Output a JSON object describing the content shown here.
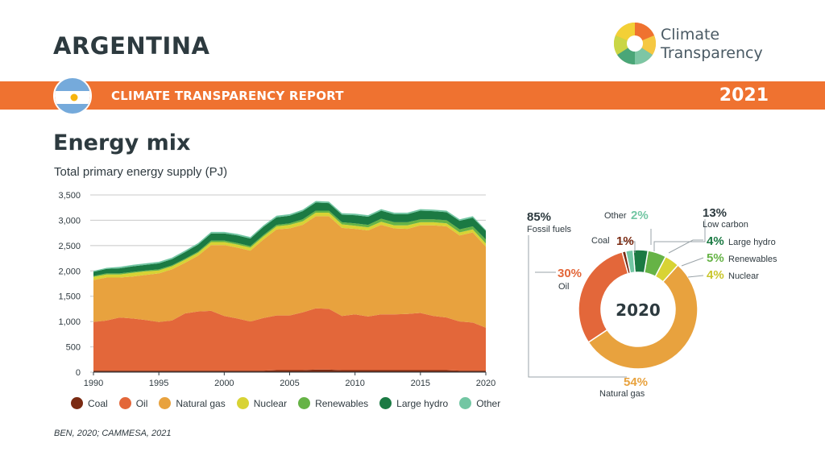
{
  "header": {
    "country": "ARGENTINA",
    "report": "CLIMATE TRANSPARENCY REPORT",
    "year": "2021",
    "logo_line1": "Climate",
    "logo_line2": "Transparency"
  },
  "section": {
    "title": "Energy mix",
    "subtitle": "Total primary energy supply (PJ)"
  },
  "source": "BEN, 2020; CAMMESA, 2021",
  "colors": {
    "Coal": "#7a2a12",
    "Oil": "#e3673a",
    "Natural gas": "#e8a23e",
    "Nuclear": "#d8d334",
    "Renewables": "#66b346",
    "Large hydro": "#1b7a43",
    "Other": "#72c6a3"
  },
  "chart_data": [
    {
      "type": "area",
      "stacked": true,
      "x": [
        1990,
        1991,
        1992,
        1993,
        1994,
        1995,
        1996,
        1997,
        1998,
        1999,
        2000,
        2001,
        2002,
        2003,
        2004,
        2005,
        2006,
        2007,
        2008,
        2009,
        2010,
        2011,
        2012,
        2013,
        2014,
        2015,
        2016,
        2017,
        2018,
        2019,
        2020
      ],
      "xticks": [
        1990,
        1995,
        2000,
        2005,
        2010,
        2015,
        2020
      ],
      "yticks": [
        0,
        500,
        1000,
        1500,
        2000,
        2500,
        3000,
        3500
      ],
      "yticklabels": [
        "0",
        "500",
        "1,000",
        "1,500",
        "2,000",
        "2,500",
        "3,000",
        "3,500"
      ],
      "ylim": [
        0,
        3500
      ],
      "grid": true,
      "legend": "bottom",
      "series": [
        {
          "name": "Coal",
          "values": [
            30,
            30,
            30,
            30,
            30,
            30,
            30,
            30,
            30,
            30,
            30,
            30,
            30,
            30,
            40,
            40,
            40,
            50,
            50,
            40,
            40,
            40,
            40,
            40,
            40,
            40,
            40,
            40,
            30,
            30,
            30
          ]
        },
        {
          "name": "Oil",
          "values": [
            960,
            990,
            1050,
            1030,
            1000,
            960,
            990,
            1130,
            1170,
            1180,
            1080,
            1030,
            970,
            1040,
            1080,
            1080,
            1140,
            1210,
            1200,
            1070,
            1100,
            1060,
            1100,
            1100,
            1110,
            1130,
            1070,
            1040,
            970,
            950,
            850
          ]
        },
        {
          "name": "Natural gas",
          "values": [
            830,
            850,
            790,
            830,
            890,
            960,
            1010,
            1000,
            1100,
            1300,
            1400,
            1400,
            1400,
            1550,
            1700,
            1720,
            1730,
            1820,
            1830,
            1740,
            1690,
            1700,
            1770,
            1700,
            1680,
            1730,
            1790,
            1800,
            1700,
            1780,
            1600
          ]
        },
        {
          "name": "Nuclear",
          "values": [
            60,
            60,
            60,
            70,
            70,
            60,
            60,
            60,
            60,
            60,
            60,
            60,
            60,
            60,
            60,
            70,
            70,
            70,
            70,
            70,
            60,
            60,
            60,
            60,
            70,
            60,
            60,
            60,
            60,
            60,
            60
          ]
        },
        {
          "name": "Renewables",
          "values": [
            20,
            20,
            20,
            20,
            20,
            20,
            20,
            20,
            20,
            30,
            30,
            30,
            30,
            30,
            30,
            30,
            40,
            40,
            40,
            40,
            50,
            50,
            60,
            60,
            60,
            60,
            60,
            60,
            60,
            60,
            80
          ]
        },
        {
          "name": "Large hydro",
          "values": [
            80,
            90,
            100,
            110,
            110,
            120,
            120,
            130,
            140,
            140,
            140,
            150,
            150,
            160,
            150,
            150,
            160,
            160,
            150,
            150,
            160,
            160,
            160,
            160,
            160,
            170,
            160,
            160,
            170,
            170,
            170
          ]
        },
        {
          "name": "Other",
          "values": [
            20,
            20,
            30,
            30,
            30,
            30,
            30,
            30,
            30,
            30,
            30,
            30,
            30,
            30,
            30,
            30,
            30,
            30,
            30,
            30,
            30,
            30,
            30,
            30,
            30,
            30,
            30,
            30,
            30,
            30,
            20
          ]
        }
      ]
    },
    {
      "type": "pie",
      "donut": true,
      "center_label": "2020",
      "slices": [
        {
          "name": "Coal",
          "value": 1
        },
        {
          "name": "Oil",
          "value": 30
        },
        {
          "name": "Natural gas",
          "value": 54
        },
        {
          "name": "Nuclear",
          "value": 4
        },
        {
          "name": "Renewables",
          "value": 5
        },
        {
          "name": "Large hydro",
          "value": 4
        },
        {
          "name": "Other",
          "value": 2
        }
      ],
      "annotations": {
        "fossil_pct": "85%",
        "fossil_label": "Fossil fuels",
        "lowcarbon_pct": "13%",
        "lowcarbon_label": "Low carbon",
        "coal_label": "Coal",
        "coal_pct": "1%",
        "oil_pct": "30%",
        "oil_label": "Oil",
        "gas_pct": "54%",
        "gas_label": "Natural gas",
        "other_label": "Other",
        "other_pct": "2%",
        "hydro_pct": "4%",
        "hydro_label": "Large hydro",
        "ren_pct": "5%",
        "ren_label": "Renewables",
        "nuc_pct": "4%",
        "nuc_label": "Nuclear"
      }
    }
  ]
}
